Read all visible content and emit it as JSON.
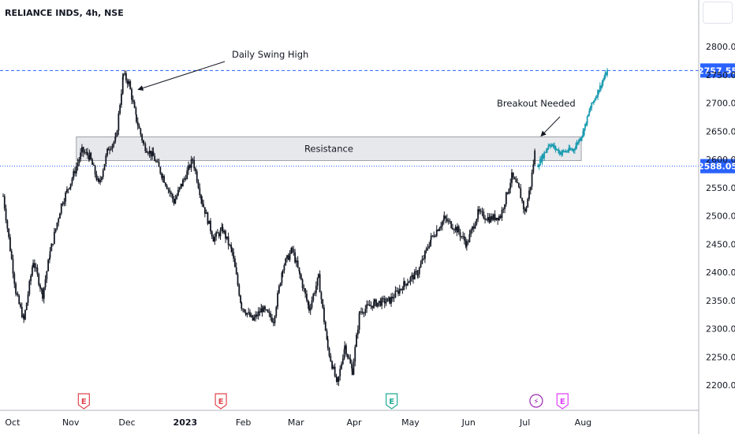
{
  "symbol_title": "RELIANCE INDS, 4h, NSE",
  "colors": {
    "candle": "#131722",
    "projection": "#1a9bb0",
    "level_line": "#2962ff",
    "tag_bg": "#2962ff",
    "resistance_fill": "#e7e8ec",
    "resistance_border": "#8a8d96",
    "event_red": "#e0464e",
    "event_green": "#22ab94",
    "event_purple": "#9c27b0",
    "event_magenta": "#e040fb"
  },
  "chart_data": {
    "type": "candlestick",
    "title": "RELIANCE INDS, 4h, NSE",
    "timeframe": "4h",
    "exchange": "NSE",
    "y_range": [
      2160,
      2850
    ],
    "y_ticks": [
      2200,
      2250,
      2300,
      2350,
      2400,
      2450,
      2500,
      2550,
      2600,
      2650,
      2700,
      2750,
      2800
    ],
    "y_tick_labels": [
      "2200.00",
      "2250.00",
      "2300.00",
      "2350.00",
      "2400.00",
      "2450.00",
      "2500.00",
      "2550.00",
      "2600.00",
      "2650.00",
      "2700.00",
      "2750.00",
      "2800.00"
    ],
    "x_labels": [
      "Oct",
      "Nov",
      "Dec",
      "2023",
      "Feb",
      "Mar",
      "Apr",
      "May",
      "Jun",
      "Jul",
      "Aug"
    ],
    "price_path": [
      [
        "2022-09-26",
        2535
      ],
      [
        "2022-10-03",
        2360
      ],
      [
        "2022-10-07",
        2315
      ],
      [
        "2022-10-12",
        2420
      ],
      [
        "2022-10-17",
        2360
      ],
      [
        "2022-10-21",
        2435
      ],
      [
        "2022-10-27",
        2520
      ],
      [
        "2022-11-01",
        2560
      ],
      [
        "2022-11-07",
        2615
      ],
      [
        "2022-11-11",
        2605
      ],
      [
        "2022-11-16",
        2555
      ],
      [
        "2022-11-21",
        2620
      ],
      [
        "2022-11-25",
        2635
      ],
      [
        "2022-11-29",
        2750
      ],
      [
        "2022-12-02",
        2735
      ],
      [
        "2022-12-06",
        2670
      ],
      [
        "2022-12-10",
        2625
      ],
      [
        "2022-12-15",
        2605
      ],
      [
        "2022-12-20",
        2570
      ],
      [
        "2022-12-26",
        2525
      ],
      [
        "2022-12-30",
        2555
      ],
      [
        "2023-01-05",
        2600
      ],
      [
        "2023-01-10",
        2525
      ],
      [
        "2023-01-16",
        2460
      ],
      [
        "2023-01-21",
        2475
      ],
      [
        "2023-01-26",
        2435
      ],
      [
        "2023-01-31",
        2340
      ],
      [
        "2023-02-06",
        2315
      ],
      [
        "2023-02-11",
        2335
      ],
      [
        "2023-02-17",
        2315
      ],
      [
        "2023-02-22",
        2410
      ],
      [
        "2023-02-27",
        2440
      ],
      [
        "2023-03-03",
        2395
      ],
      [
        "2023-03-08",
        2335
      ],
      [
        "2023-03-13",
        2390
      ],
      [
        "2023-03-18",
        2265
      ],
      [
        "2023-03-23",
        2200
      ],
      [
        "2023-03-27",
        2270
      ],
      [
        "2023-03-31",
        2225
      ],
      [
        "2023-04-04",
        2330
      ],
      [
        "2023-04-12",
        2345
      ],
      [
        "2023-04-20",
        2350
      ],
      [
        "2023-04-28",
        2380
      ],
      [
        "2023-05-05",
        2400
      ],
      [
        "2023-05-12",
        2460
      ],
      [
        "2023-05-19",
        2495
      ],
      [
        "2023-05-26",
        2475
      ],
      [
        "2023-05-31",
        2450
      ],
      [
        "2023-06-06",
        2505
      ],
      [
        "2023-06-12",
        2495
      ],
      [
        "2023-06-18",
        2500
      ],
      [
        "2023-06-24",
        2570
      ],
      [
        "2023-06-28",
        2545
      ],
      [
        "2023-07-01",
        2505
      ],
      [
        "2023-07-04",
        2555
      ],
      [
        "2023-07-07",
        2632
      ]
    ],
    "projection_path": [
      [
        "2023-07-08",
        2590
      ],
      [
        "2023-07-14",
        2628
      ],
      [
        "2023-07-20",
        2612
      ],
      [
        "2023-07-27",
        2618
      ],
      [
        "2023-08-01",
        2648
      ],
      [
        "2023-08-05",
        2692
      ],
      [
        "2023-08-10",
        2728
      ],
      [
        "2023-08-14",
        2757.55
      ]
    ],
    "resistance_zone": {
      "label": "Resistance",
      "from": "2022-11-04",
      "to": "2023-07-31",
      "low": 2598,
      "high": 2640
    },
    "levels": [
      {
        "price": 2757.55,
        "label": "2757.55",
        "style": "dashed"
      },
      {
        "price": 2588.05,
        "label": "2588.05",
        "style": "dotted"
      }
    ],
    "annotations": [
      {
        "text": "Daily Swing High",
        "points_to": [
          "2022-12-01",
          2735
        ]
      },
      {
        "text": "Breakout Needed",
        "points_to": [
          "2023-07-07",
          2644
        ]
      }
    ],
    "events": [
      {
        "date": "2022-11-08",
        "letter": "E",
        "kind": "earnings",
        "color": "red"
      },
      {
        "date": "2023-01-20",
        "letter": "E",
        "kind": "earnings",
        "color": "red"
      },
      {
        "date": "2023-04-21",
        "letter": "E",
        "kind": "earnings",
        "color": "green"
      },
      {
        "date": "2023-07-07",
        "letter": "⚡",
        "kind": "flash",
        "color": "purple"
      },
      {
        "date": "2023-07-21",
        "letter": "E",
        "kind": "earnings",
        "color": "magenta"
      }
    ]
  }
}
